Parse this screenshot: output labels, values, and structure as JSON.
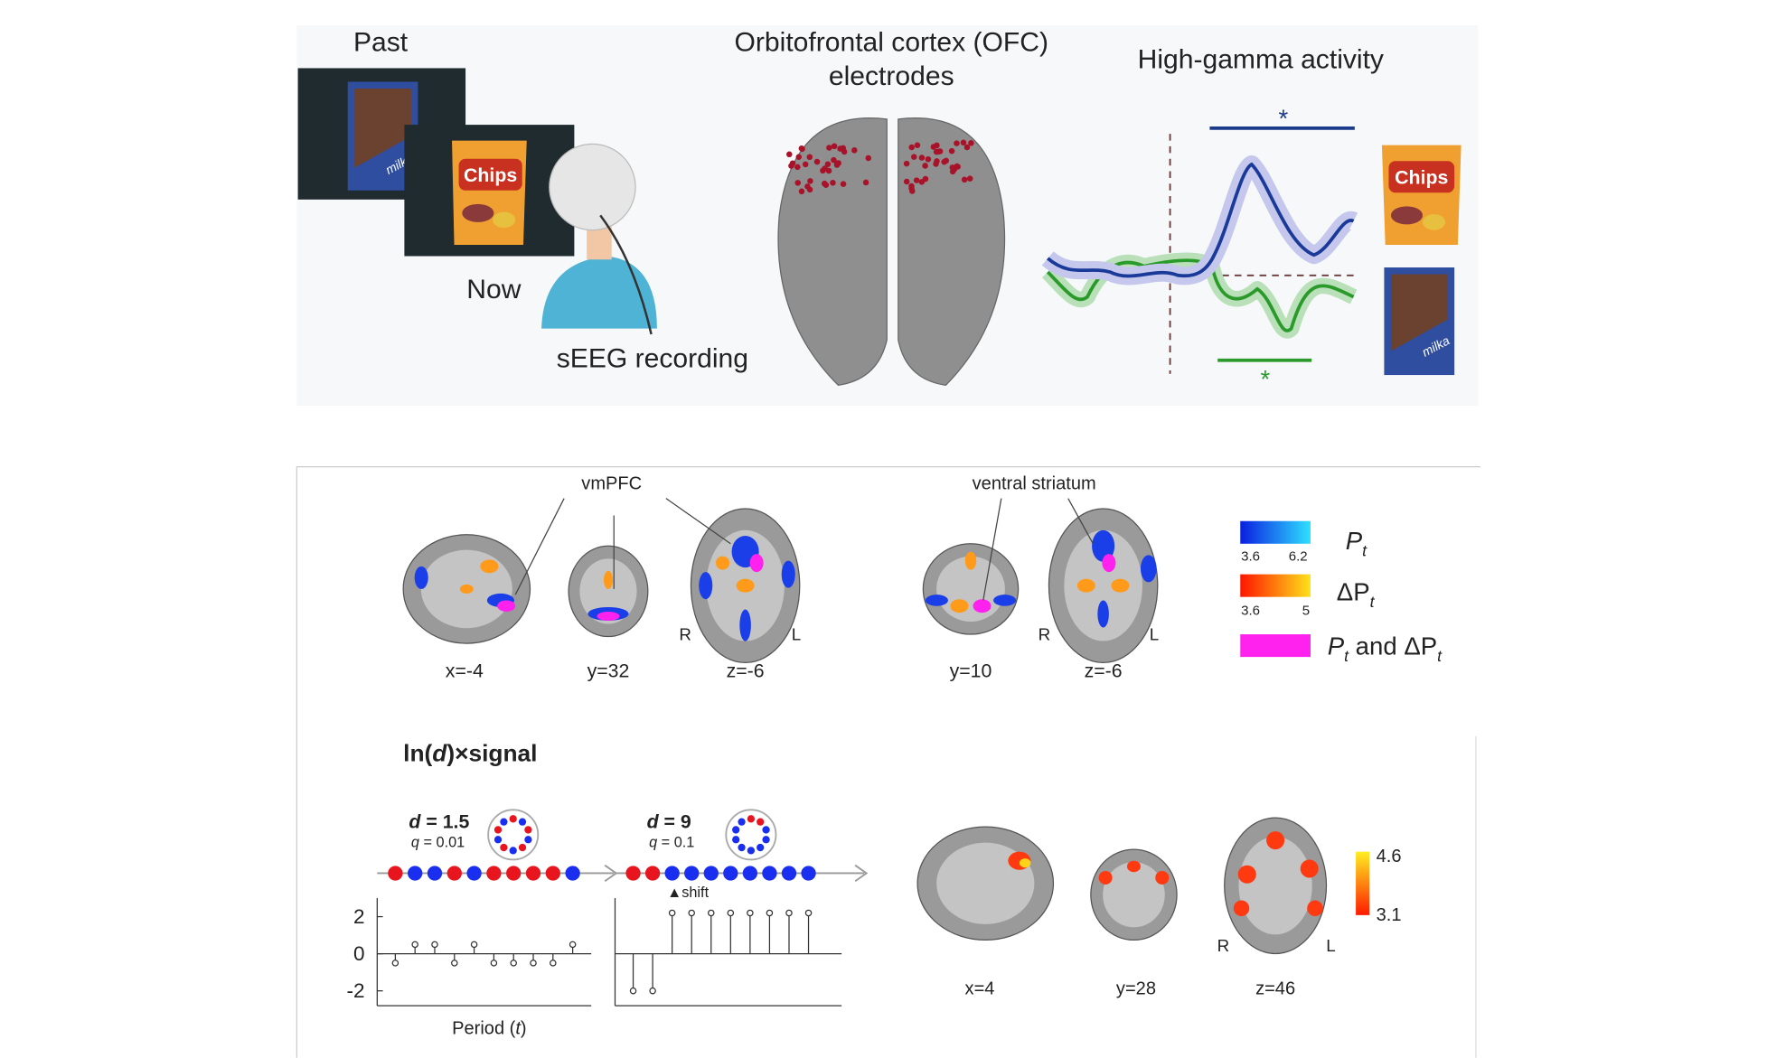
{
  "panel_a": {
    "past": "Past",
    "now": "Now",
    "recording": "sEEG recording",
    "ofc_title": [
      "Orbitofrontal cortex (OFC)",
      "electrodes"
    ],
    "hga_title": "High-gamma activity",
    "sig_blue": "*",
    "sig_green": "*",
    "chips_label": "Chips",
    "chocolate_label": "milka"
  },
  "panel_b": {
    "regions": [
      "vmPFC",
      "ventral striatum"
    ],
    "slices": [
      "x=-4",
      "y=32",
      "z=-6",
      "y=10",
      "z=-6"
    ],
    "orientation": [
      "R",
      "L"
    ],
    "legend": [
      {
        "symbol": "P",
        "sub": "t",
        "min": 3.6,
        "max": 6.2,
        "colors": [
          "#0a1fe0",
          "#2ee0ff"
        ]
      },
      {
        "symbol": "ΔP",
        "sub": "t",
        "min": 3.6,
        "max": 5,
        "colors": [
          "#ff1500",
          "#ffe21a"
        ]
      },
      {
        "symbol": "P",
        "sub": "t",
        "joiner": " and ΔP",
        "sub2": "t",
        "color": "#ff22ee"
      }
    ]
  },
  "panel_c": {
    "title": {
      "pre": "ln(",
      "var": "d",
      "post": ")×signal"
    },
    "examples": [
      {
        "d_var": "d",
        "d_text": " = 1.5",
        "q_var": "q",
        "q_text": " = 0.01",
        "values": [
          -0.5,
          0.5,
          0.5,
          -0.5,
          0.5,
          -0.5,
          -0.5,
          -0.5,
          -0.5,
          0.5
        ]
      },
      {
        "d_var": "d",
        "d_text": " = 9",
        "q_var": "q",
        "q_text": " = 0.1",
        "annotation": "▲shift",
        "values": [
          -2,
          -2,
          2.2,
          2.2,
          2.2,
          2.2,
          2.2,
          2.2,
          2.2,
          2.2
        ]
      }
    ],
    "ylim": [
      -2.8,
      3
    ],
    "yticks": [
      2,
      0,
      -2
    ],
    "xlabel": {
      "pre": "Period (",
      "var": "t",
      "post": ")"
    },
    "slices": [
      "x=4",
      "y=28",
      "z=46"
    ],
    "orientation": [
      "R",
      "L"
    ],
    "colorbar": {
      "max": 4.6,
      "min": 3.1,
      "colors": [
        "#ff1a00",
        "#ffee22"
      ]
    }
  }
}
